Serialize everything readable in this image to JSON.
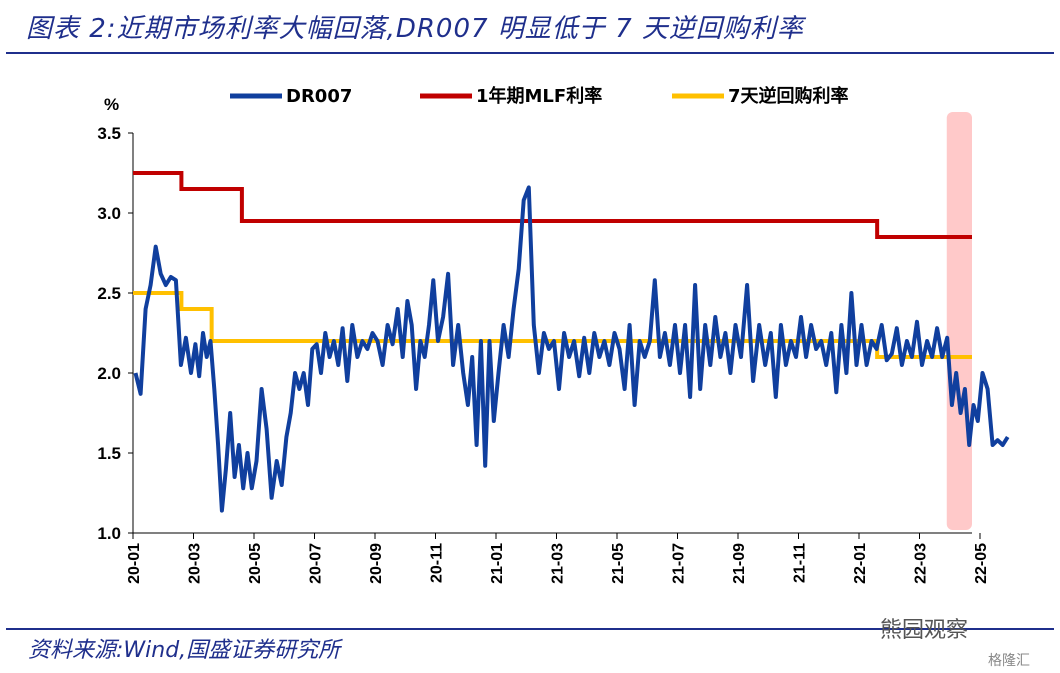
{
  "header": {
    "title": "图表 2:近期市场利率大幅回落,DR007 明显低于 7 天逆回购利率"
  },
  "footer": {
    "source": "资料来源:Wind,国盛证券研究所"
  },
  "watermarks": {
    "primary": "熊园观察",
    "secondary": "格隆汇"
  },
  "colors": {
    "dr007": "#103f9e",
    "mlf": "#c00000",
    "reverse_repo": "#ffc000",
    "highlight": "#ffc9c9",
    "brand": "#1f2f8c"
  },
  "chart_data": {
    "type": "line",
    "title": "",
    "xlabel": "",
    "ylabel": "%",
    "ylim": [
      1.0,
      3.5
    ],
    "yticks": [
      "1.0",
      "1.5",
      "2.0",
      "2.5",
      "3.0",
      "3.5"
    ],
    "x_start": "2020-01",
    "x_end": "2022-05",
    "xticks": [
      {
        "label": "20-01",
        "month": 0
      },
      {
        "label": "20-03",
        "month": 2
      },
      {
        "label": "20-05",
        "month": 4
      },
      {
        "label": "20-07",
        "month": 6
      },
      {
        "label": "20-09",
        "month": 8
      },
      {
        "label": "20-11",
        "month": 10
      },
      {
        "label": "21-01",
        "month": 12
      },
      {
        "label": "21-03",
        "month": 14
      },
      {
        "label": "21-05",
        "month": 16
      },
      {
        "label": "21-07",
        "month": 18
      },
      {
        "label": "21-09",
        "month": 20
      },
      {
        "label": "21-11",
        "month": 22
      },
      {
        "label": "22-01",
        "month": 24
      },
      {
        "label": "22-03",
        "month": 26
      },
      {
        "label": "22-05",
        "month": 28
      }
    ],
    "legend_position": "top",
    "highlight_span": {
      "from": "2022-04",
      "to": "2022-05"
    },
    "series": [
      {
        "name": "DR007",
        "points": [
          [
            "2020-01",
            2.0
          ],
          [
            "2020-01",
            1.87
          ],
          [
            "2020-01",
            2.4
          ],
          [
            "2020-01",
            2.55
          ],
          [
            "2020-01",
            2.79
          ],
          [
            "2020-01",
            2.62
          ],
          [
            "2020-02",
            2.55
          ],
          [
            "2020-02",
            2.6
          ],
          [
            "2020-02",
            2.58
          ],
          [
            "2020-02",
            2.05
          ],
          [
            "2020-02",
            2.22
          ],
          [
            "2020-02",
            2.0
          ],
          [
            "2020-03",
            2.18
          ],
          [
            "2020-03",
            1.98
          ],
          [
            "2020-03",
            2.25
          ],
          [
            "2020-03",
            2.1
          ],
          [
            "2020-03",
            2.2
          ],
          [
            "2020-03",
            1.9
          ],
          [
            "2020-03",
            1.55
          ],
          [
            "2020-03",
            1.14
          ],
          [
            "2020-04",
            1.4
          ],
          [
            "2020-04",
            1.75
          ],
          [
            "2020-04",
            1.35
          ],
          [
            "2020-04",
            1.55
          ],
          [
            "2020-04",
            1.28
          ],
          [
            "2020-04",
            1.5
          ],
          [
            "2020-04",
            1.28
          ],
          [
            "2020-05",
            1.45
          ],
          [
            "2020-05",
            1.9
          ],
          [
            "2020-05",
            1.65
          ],
          [
            "2020-05",
            1.22
          ],
          [
            "2020-05",
            1.45
          ],
          [
            "2020-05",
            1.3
          ],
          [
            "2020-06",
            1.6
          ],
          [
            "2020-06",
            1.75
          ],
          [
            "2020-06",
            2.0
          ],
          [
            "2020-06",
            1.9
          ],
          [
            "2020-06",
            2.0
          ],
          [
            "2020-06",
            1.8
          ],
          [
            "2020-06",
            2.15
          ],
          [
            "2020-07",
            2.18
          ],
          [
            "2020-07",
            2.0
          ],
          [
            "2020-07",
            2.25
          ],
          [
            "2020-07",
            2.1
          ],
          [
            "2020-07",
            2.2
          ],
          [
            "2020-07",
            2.05
          ],
          [
            "2020-07",
            2.28
          ],
          [
            "2020-08",
            1.95
          ],
          [
            "2020-08",
            2.3
          ],
          [
            "2020-08",
            2.1
          ],
          [
            "2020-08",
            2.2
          ],
          [
            "2020-08",
            2.15
          ],
          [
            "2020-08",
            2.25
          ],
          [
            "2020-09",
            2.2
          ],
          [
            "2020-09",
            2.05
          ],
          [
            "2020-09",
            2.3
          ],
          [
            "2020-09",
            2.18
          ],
          [
            "2020-09",
            2.4
          ],
          [
            "2020-09",
            2.1
          ],
          [
            "2020-10",
            2.45
          ],
          [
            "2020-10",
            2.3
          ],
          [
            "2020-10",
            1.9
          ],
          [
            "2020-10",
            2.2
          ],
          [
            "2020-10",
            2.1
          ],
          [
            "2020-10",
            2.3
          ],
          [
            "2020-10",
            2.58
          ],
          [
            "2020-11",
            2.2
          ],
          [
            "2020-11",
            2.35
          ],
          [
            "2020-11",
            2.62
          ],
          [
            "2020-11",
            2.05
          ],
          [
            "2020-11",
            2.3
          ],
          [
            "2020-11",
            2.0
          ],
          [
            "2020-12",
            1.8
          ],
          [
            "2020-12",
            2.1
          ],
          [
            "2020-12",
            1.55
          ],
          [
            "2020-12",
            2.2
          ],
          [
            "2020-12",
            1.42
          ],
          [
            "2020-12",
            2.2
          ],
          [
            "2020-12",
            1.7
          ],
          [
            "2021-01",
            2.0
          ],
          [
            "2021-01",
            2.3
          ],
          [
            "2021-01",
            2.1
          ],
          [
            "2021-01",
            2.4
          ],
          [
            "2021-01",
            2.65
          ],
          [
            "2021-01",
            3.08
          ],
          [
            "2021-02",
            3.16
          ],
          [
            "2021-02",
            2.3
          ],
          [
            "2021-02",
            2.0
          ],
          [
            "2021-02",
            2.25
          ],
          [
            "2021-02",
            2.15
          ],
          [
            "2021-02",
            2.2
          ],
          [
            "2021-03",
            1.9
          ],
          [
            "2021-03",
            2.25
          ],
          [
            "2021-03",
            2.1
          ],
          [
            "2021-03",
            2.2
          ],
          [
            "2021-03",
            1.98
          ],
          [
            "2021-03",
            2.22
          ],
          [
            "2021-04",
            2.0
          ],
          [
            "2021-04",
            2.25
          ],
          [
            "2021-04",
            2.1
          ],
          [
            "2021-04",
            2.2
          ],
          [
            "2021-04",
            2.05
          ],
          [
            "2021-04",
            2.25
          ],
          [
            "2021-05",
            2.15
          ],
          [
            "2021-05",
            1.9
          ],
          [
            "2021-05",
            2.3
          ],
          [
            "2021-05",
            1.8
          ],
          [
            "2021-05",
            2.2
          ],
          [
            "2021-05",
            2.1
          ],
          [
            "2021-06",
            2.2
          ],
          [
            "2021-06",
            2.58
          ],
          [
            "2021-06",
            2.1
          ],
          [
            "2021-06",
            2.25
          ],
          [
            "2021-06",
            2.05
          ],
          [
            "2021-06",
            2.3
          ],
          [
            "2021-07",
            2.0
          ],
          [
            "2021-07",
            2.3
          ],
          [
            "2021-07",
            1.85
          ],
          [
            "2021-07",
            2.55
          ],
          [
            "2021-07",
            1.9
          ],
          [
            "2021-07",
            2.3
          ],
          [
            "2021-08",
            2.05
          ],
          [
            "2021-08",
            2.35
          ],
          [
            "2021-08",
            2.1
          ],
          [
            "2021-08",
            2.25
          ],
          [
            "2021-08",
            2.0
          ],
          [
            "2021-08",
            2.3
          ],
          [
            "2021-09",
            2.1
          ],
          [
            "2021-09",
            2.55
          ],
          [
            "2021-09",
            1.95
          ],
          [
            "2021-09",
            2.3
          ],
          [
            "2021-09",
            2.05
          ],
          [
            "2021-10",
            2.25
          ],
          [
            "2021-10",
            1.85
          ],
          [
            "2021-10",
            2.3
          ],
          [
            "2021-10",
            2.05
          ],
          [
            "2021-10",
            2.2
          ],
          [
            "2021-10",
            2.1
          ],
          [
            "2021-11",
            2.35
          ],
          [
            "2021-11",
            2.1
          ],
          [
            "2021-11",
            2.3
          ],
          [
            "2021-11",
            2.15
          ],
          [
            "2021-11",
            2.2
          ],
          [
            "2021-11",
            2.05
          ],
          [
            "2021-12",
            2.25
          ],
          [
            "2021-12",
            1.88
          ],
          [
            "2021-12",
            2.3
          ],
          [
            "2021-12",
            2.0
          ],
          [
            "2021-12",
            2.5
          ],
          [
            "2021-12",
            2.05
          ],
          [
            "2022-01",
            2.3
          ],
          [
            "2022-01",
            2.05
          ],
          [
            "2022-01",
            2.2
          ],
          [
            "2022-01",
            2.15
          ],
          [
            "2022-01",
            2.3
          ],
          [
            "2022-01",
            2.08
          ],
          [
            "2022-02",
            2.12
          ],
          [
            "2022-02",
            2.28
          ],
          [
            "2022-02",
            2.05
          ],
          [
            "2022-02",
            2.2
          ],
          [
            "2022-02",
            2.1
          ],
          [
            "2022-02",
            2.32
          ],
          [
            "2022-03",
            2.05
          ],
          [
            "2022-03",
            2.2
          ],
          [
            "2022-03",
            2.1
          ],
          [
            "2022-03",
            2.28
          ],
          [
            "2022-03",
            2.1
          ],
          [
            "2022-03",
            2.22
          ],
          [
            "2022-04",
            1.8
          ],
          [
            "2022-04",
            2.0
          ],
          [
            "2022-04",
            1.75
          ],
          [
            "2022-04",
            1.9
          ],
          [
            "2022-04",
            1.55
          ],
          [
            "2022-04",
            1.8
          ],
          [
            "2022-04",
            1.7
          ],
          [
            "2022-05",
            2.0
          ],
          [
            "2022-05",
            1.9
          ],
          [
            "2022-05",
            1.55
          ],
          [
            "2022-05",
            1.58
          ],
          [
            "2022-05",
            1.55
          ],
          [
            "2022-05",
            1.6
          ]
        ]
      },
      {
        "name": "1年期MLF利率",
        "steps": [
          [
            "2020-01",
            3.25
          ],
          [
            "2020-02",
            3.15
          ],
          [
            "2020-04",
            2.95
          ],
          [
            "2022-01",
            2.85
          ],
          [
            "2022-05",
            2.85
          ]
        ]
      },
      {
        "name": "7天逆回购利率",
        "steps": [
          [
            "2020-01",
            2.5
          ],
          [
            "2020-02",
            2.4
          ],
          [
            "2020-03",
            2.2
          ],
          [
            "2022-01",
            2.1
          ],
          [
            "2022-05",
            2.1
          ]
        ]
      }
    ]
  }
}
